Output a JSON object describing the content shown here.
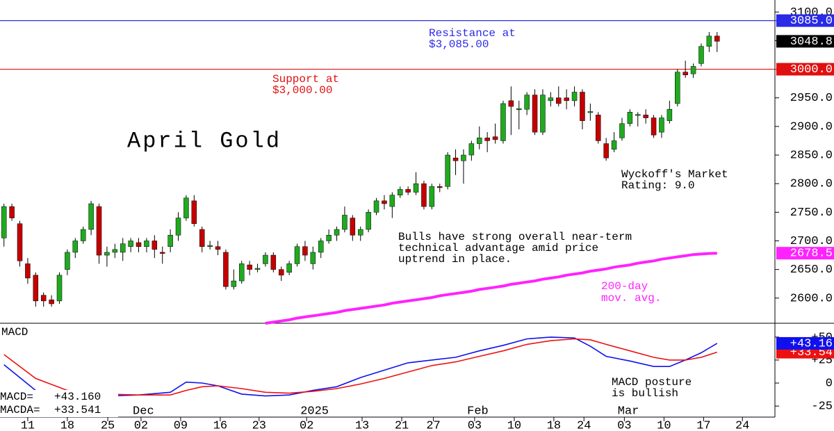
{
  "chart_data": [
    {
      "type": "candlestick",
      "title": "April Gold",
      "up_color": "#1faa1f",
      "down_color": "#c40000",
      "xlim": [
        -0.5,
        97.3
      ],
      "ylim": [
        2556,
        3121
      ],
      "yticks": [
        {
          "value": 2600,
          "label": "2600.0"
        },
        {
          "value": 2650,
          "label": "2650.0"
        },
        {
          "value": 2700,
          "label": "2700.0"
        },
        {
          "value": 2750,
          "label": "2750.0"
        },
        {
          "value": 2800,
          "label": "2800.0"
        },
        {
          "value": 2850,
          "label": "2850.0"
        },
        {
          "value": 2900,
          "label": "2900.0"
        },
        {
          "value": 2950,
          "label": "2950.0"
        },
        {
          "value": 3000,
          "label": "3000.0"
        },
        {
          "value": 3050,
          "label": "3050.0"
        },
        {
          "value": 3100,
          "label": "3100.0"
        }
      ],
      "xticks": [
        {
          "value": 3,
          "label": "11"
        },
        {
          "value": 8,
          "label": "18"
        },
        {
          "value": 13.1,
          "label": "25"
        },
        {
          "value": 17.3,
          "label": "02"
        },
        {
          "value": 22.3,
          "label": "09"
        },
        {
          "value": 27.3,
          "label": "16"
        },
        {
          "value": 32.2,
          "label": "23"
        },
        {
          "value": 38.2,
          "label": "02"
        },
        {
          "value": 45.2,
          "label": "13"
        },
        {
          "value": 50.2,
          "label": "21"
        },
        {
          "value": 54.2,
          "label": "27"
        },
        {
          "value": 59.4,
          "label": "03"
        },
        {
          "value": 64.4,
          "label": "10"
        },
        {
          "value": 69.4,
          "label": "18"
        },
        {
          "value": 73.2,
          "label": "24"
        },
        {
          "value": 78.3,
          "label": "03"
        },
        {
          "value": 83.3,
          "label": "10"
        },
        {
          "value": 88.3,
          "label": "17"
        },
        {
          "value": 93.2,
          "label": "24"
        }
      ],
      "month_labels": [
        {
          "value": 17.6,
          "label": "Dec"
        },
        {
          "value": 39.2,
          "label": "2025"
        },
        {
          "value": 59.8,
          "label": "Feb"
        },
        {
          "value": 78.8,
          "label": "Mar"
        }
      ],
      "candles": [
        [
          2705,
          2765,
          2690,
          2760
        ],
        [
          2760,
          2765,
          2735,
          2740
        ],
        [
          2730,
          2735,
          2655,
          2665
        ],
        [
          2660,
          2670,
          2625,
          2635
        ],
        [
          2640,
          2645,
          2585,
          2595
        ],
        [
          2605,
          2610,
          2585,
          2595
        ],
        [
          2597,
          2605,
          2585,
          2590
        ],
        [
          2595,
          2645,
          2590,
          2640
        ],
        [
          2650,
          2685,
          2640,
          2680
        ],
        [
          2680,
          2705,
          2670,
          2700
        ],
        [
          2700,
          2725,
          2695,
          2720
        ],
        [
          2720,
          2770,
          2710,
          2765
        ],
        [
          2760,
          2765,
          2660,
          2675
        ],
        [
          2675,
          2690,
          2655,
          2680
        ],
        [
          2680,
          2695,
          2670,
          2685
        ],
        [
          2680,
          2705,
          2665,
          2695
        ],
        [
          2690,
          2705,
          2680,
          2700
        ],
        [
          2697,
          2705,
          2680,
          2690
        ],
        [
          2690,
          2705,
          2680,
          2700
        ],
        [
          2700,
          2710,
          2670,
          2685
        ],
        [
          2680,
          2690,
          2660,
          2678
        ],
        [
          2690,
          2720,
          2680,
          2710
        ],
        [
          2710,
          2750,
          2700,
          2740
        ],
        [
          2740,
          2780,
          2735,
          2775
        ],
        [
          2770,
          2780,
          2725,
          2730
        ],
        [
          2720,
          2725,
          2680,
          2690
        ],
        [
          2690,
          2700,
          2685,
          2692
        ],
        [
          2690,
          2700,
          2675,
          2685
        ],
        [
          2680,
          2685,
          2615,
          2620
        ],
        [
          2620,
          2650,
          2615,
          2630
        ],
        [
          2630,
          2665,
          2625,
          2660
        ],
        [
          2658,
          2665,
          2640,
          2650
        ],
        [
          2650,
          2660,
          2645,
          2652
        ],
        [
          2660,
          2680,
          2655,
          2675
        ],
        [
          2675,
          2680,
          2645,
          2650
        ],
        [
          2650,
          2655,
          2630,
          2640
        ],
        [
          2645,
          2665,
          2640,
          2660
        ],
        [
          2660,
          2695,
          2655,
          2690
        ],
        [
          2690,
          2700,
          2665,
          2675
        ],
        [
          2660,
          2690,
          2650,
          2680
        ],
        [
          2680,
          2705,
          2670,
          2700
        ],
        [
          2700,
          2720,
          2695,
          2710
        ],
        [
          2710,
          2725,
          2700,
          2720
        ],
        [
          2720,
          2760,
          2715,
          2745
        ],
        [
          2740,
          2745,
          2700,
          2710
        ],
        [
          2710,
          2725,
          2700,
          2720
        ],
        [
          2720,
          2755,
          2715,
          2750
        ],
        [
          2750,
          2775,
          2745,
          2770
        ],
        [
          2770,
          2780,
          2755,
          2765
        ],
        [
          2760,
          2785,
          2740,
          2780
        ],
        [
          2780,
          2795,
          2775,
          2790
        ],
        [
          2790,
          2795,
          2780,
          2785
        ],
        [
          2785,
          2820,
          2780,
          2800
        ],
        [
          2800,
          2805,
          2755,
          2760
        ],
        [
          2760,
          2800,
          2755,
          2795
        ],
        [
          2795,
          2800,
          2785,
          2793
        ],
        [
          2795,
          2855,
          2790,
          2850
        ],
        [
          2845,
          2860,
          2815,
          2840
        ],
        [
          2840,
          2860,
          2800,
          2850
        ],
        [
          2850,
          2875,
          2840,
          2870
        ],
        [
          2870,
          2900,
          2860,
          2880
        ],
        [
          2880,
          2890,
          2855,
          2875
        ],
        [
          2882,
          2905,
          2870,
          2877
        ],
        [
          2875,
          2945,
          2870,
          2940
        ],
        [
          2945,
          2970,
          2885,
          2935
        ],
        [
          2930,
          2945,
          2895,
          2931
        ],
        [
          2930,
          2960,
          2920,
          2955
        ],
        [
          2955,
          2965,
          2885,
          2890
        ],
        [
          2890,
          2965,
          2885,
          2955
        ],
        [
          2945,
          2960,
          2935,
          2950
        ],
        [
          2950,
          2970,
          2935,
          2940
        ],
        [
          2950,
          2965,
          2930,
          2945
        ],
        [
          2945,
          2970,
          2935,
          2960
        ],
        [
          2960,
          2965,
          2895,
          2910
        ],
        [
          2925,
          2940,
          2910,
          2926
        ],
        [
          2920,
          2925,
          2870,
          2875
        ],
        [
          2870,
          2880,
          2840,
          2845
        ],
        [
          2860,
          2890,
          2855,
          2875
        ],
        [
          2880,
          2915,
          2875,
          2905
        ],
        [
          2905,
          2930,
          2900,
          2925
        ],
        [
          2920,
          2925,
          2900,
          2921
        ],
        [
          2920,
          2930,
          2905,
          2915
        ],
        [
          2915,
          2920,
          2880,
          2885
        ],
        [
          2890,
          2920,
          2880,
          2915
        ],
        [
          2910,
          2945,
          2905,
          2930
        ],
        [
          2940,
          3000,
          2935,
          2995
        ],
        [
          2995,
          3015,
          2985,
          2990
        ],
        [
          2992,
          3010,
          2985,
          3005
        ],
        [
          3010,
          3045,
          3005,
          3040
        ],
        [
          3040,
          3065,
          3030,
          3058
        ],
        [
          3058,
          3065,
          3030,
          3048.8
        ]
      ],
      "close_label": {
        "value": 3048.8,
        "label": "3048.8"
      },
      "levels": [
        {
          "value": 3085,
          "label": "3085.0",
          "color": "#2a2ae8",
          "note": [
            "Resistance at",
            "$3,085.00"
          ]
        },
        {
          "value": 3000,
          "label": "3000.0",
          "color": "#e01010",
          "note": [
            "Support at",
            "$3,000.00"
          ]
        }
      ],
      "moving_average": {
        "label": [
          "200-day",
          "mov. avg."
        ],
        "color": "#ff22ff",
        "box_label": "2678.5",
        "values": [
          null,
          null,
          null,
          null,
          null,
          null,
          null,
          null,
          null,
          null,
          null,
          null,
          null,
          null,
          null,
          null,
          null,
          null,
          null,
          null,
          null,
          null,
          null,
          null,
          null,
          null,
          null,
          null,
          null,
          null,
          null,
          null,
          null,
          2556,
          2558,
          2560,
          2562,
          2565,
          2567,
          2569,
          2571,
          2573,
          2575,
          2578,
          2580,
          2582,
          2584,
          2586,
          2588,
          2591,
          2593,
          2595,
          2597,
          2599,
          2601,
          2604,
          2606,
          2608,
          2610,
          2612,
          2615,
          2617,
          2619,
          2621,
          2624,
          2626,
          2628,
          2630,
          2633,
          2635,
          2637,
          2640,
          2642,
          2644,
          2647,
          2649,
          2651,
          2654,
          2656,
          2658,
          2661,
          2663,
          2665,
          2668,
          2670,
          2672,
          2674,
          2676,
          2677,
          2678,
          2678.5
        ]
      },
      "annotations": [
        [
          "Wyckoff's Market",
          "Rating: 9.0"
        ],
        [
          "Bulls have strong overall near-term",
          "technical advantage amid price",
          "uptrend in place."
        ]
      ]
    },
    {
      "type": "line",
      "title": "MACD",
      "xlim": [
        -0.5,
        97.3
      ],
      "ylim": [
        -37,
        65
      ],
      "yticks": [
        {
          "value": 50,
          "label": "+50"
        },
        {
          "value": 25,
          "label": "+25"
        },
        0,
        -25
      ],
      "x": [
        0,
        4,
        8,
        13,
        17,
        21,
        23,
        25,
        27,
        30,
        33,
        36,
        39,
        42,
        45,
        48,
        51,
        54,
        57,
        60,
        63,
        66,
        69,
        72,
        74,
        76,
        79,
        82,
        84,
        86,
        88,
        90
      ],
      "series": [
        {
          "name": "MACD=",
          "color": "#1010ee",
          "readout": "+43.160",
          "box_label": "+43.16",
          "values": [
            20,
            -8,
            -18,
            -14,
            -13,
            -10,
            1,
            0,
            -3,
            -12,
            -14,
            -13,
            -8,
            -4,
            6,
            14,
            22,
            25,
            28,
            35,
            41,
            48,
            50,
            49,
            40,
            29,
            24,
            18,
            18,
            25,
            33,
            43.16
          ]
        },
        {
          "name": "MACDA=",
          "color": "#ee1010",
          "readout": "+33.541",
          "box_label": "+33.54",
          "values": [
            31,
            5,
            -8,
            -12,
            -13,
            -13,
            -8,
            -4,
            -3,
            -6,
            -10,
            -11,
            -9,
            -6,
            -1,
            5,
            12,
            19,
            23,
            29,
            35,
            42,
            46,
            48,
            47,
            42,
            35,
            28,
            25,
            25,
            28,
            33.541
          ]
        }
      ],
      "annotation": [
        "MACD posture",
        "is bullish"
      ]
    }
  ]
}
